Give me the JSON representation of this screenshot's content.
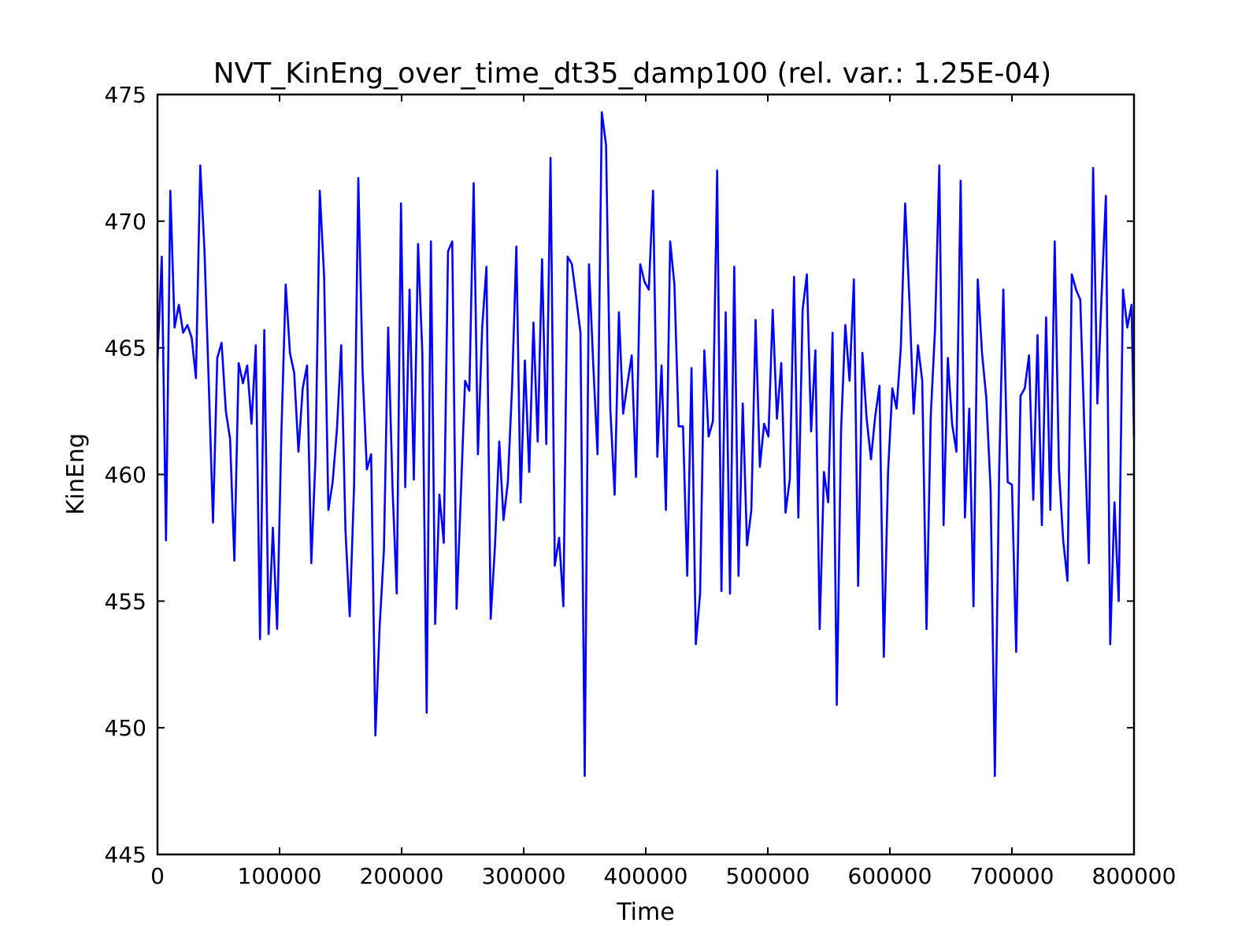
{
  "colors": {
    "series": "#0000ff",
    "frame": "#000000",
    "background": "#ffffff"
  },
  "chart_data": {
    "type": "line",
    "title": "NVT_KinEng_over_time_dt35_damp100 (rel. var.: 1.25E-04)",
    "xlabel": "Time",
    "ylabel": "KinEng",
    "xlim": [
      0,
      800000
    ],
    "ylim": [
      445,
      475
    ],
    "grid": false,
    "legend": "none",
    "xticks": [
      0,
      100000,
      200000,
      300000,
      400000,
      500000,
      600000,
      700000,
      800000
    ],
    "xtick_labels": [
      "0",
      "100000",
      "200000",
      "300000",
      "400000",
      "500000",
      "600000",
      "700000",
      "800000"
    ],
    "yticks": [
      445,
      450,
      455,
      460,
      465,
      470,
      475
    ],
    "ytick_labels": [
      "445",
      "450",
      "455",
      "460",
      "465",
      "470",
      "475"
    ],
    "series": [
      {
        "color": "#0000ff",
        "x": [
          0,
          3500,
          7000,
          10500,
          14000,
          17500,
          21000,
          24500,
          28000,
          31500,
          35000,
          38500,
          42000,
          45500,
          49000,
          52500,
          56000,
          59500,
          63000,
          66500,
          70000,
          73500,
          77000,
          80500,
          84000,
          87500,
          91000,
          94500,
          98000,
          101500,
          105000,
          108500,
          112000,
          115500,
          119000,
          122500,
          126000,
          129500,
          133000,
          136500,
          140000,
          143500,
          147000,
          150500,
          154000,
          157500,
          161000,
          164500,
          168000,
          171500,
          175000,
          178500,
          182000,
          185500,
          189000,
          192500,
          196000,
          199500,
          203000,
          206500,
          210000,
          213500,
          217000,
          220500,
          224000,
          227500,
          231000,
          234500,
          238000,
          241500,
          245000,
          248500,
          252000,
          255500,
          259000,
          262500,
          266000,
          269500,
          273000,
          276500,
          280000,
          283500,
          287000,
          290500,
          294000,
          297500,
          301000,
          304500,
          308000,
          311500,
          315000,
          318500,
          322000,
          325500,
          329000,
          332500,
          336000,
          339500,
          343000,
          346500,
          350000,
          353500,
          357000,
          360500,
          364000,
          367500,
          371000,
          374500,
          378000,
          381500,
          385000,
          388500,
          392000,
          395500,
          399000,
          402500,
          406000,
          409500,
          413000,
          416500,
          420000,
          423500,
          427000,
          430500,
          434000,
          437500,
          441000,
          444500,
          448000,
          451500,
          455000,
          458500,
          462000,
          465500,
          469000,
          472500,
          476000,
          479500,
          483000,
          486500,
          490000,
          493500,
          497000,
          500500,
          504000,
          507500,
          511000,
          514500,
          518000,
          521500,
          525000,
          528500,
          532000,
          535500,
          539000,
          542500,
          546000,
          549500,
          553000,
          556500,
          560000,
          563500,
          567000,
          570500,
          574000,
          577500,
          581000,
          584500,
          588000,
          591500,
          595000,
          598500,
          602000,
          605500,
          609000,
          612500,
          616000,
          619500,
          623000,
          626500,
          630000,
          633500,
          637000,
          640500,
          644000,
          647500,
          651000,
          654500,
          658000,
          661500,
          665000,
          668500,
          672000,
          675500,
          679000,
          682500,
          686000,
          689500,
          693000,
          696500,
          700000,
          703500,
          707000,
          710500,
          714000,
          717500,
          721000,
          724500,
          728000,
          731500,
          735000,
          738500,
          742000,
          745500,
          749000,
          752500,
          756000,
          759500,
          763000,
          766500,
          770000,
          773500,
          777000,
          780500,
          784000,
          787500,
          791000,
          794500,
          798000,
          800000
        ],
        "y": [
          464.5,
          468.6,
          457.4,
          471.2,
          465.8,
          466.7,
          465.6,
          465.9,
          465.4,
          463.8,
          472.2,
          468.8,
          463.6,
          458.1,
          464.6,
          465.2,
          462.5,
          461.4,
          456.6,
          464.4,
          463.6,
          464.3,
          462.0,
          465.1,
          453.5,
          465.7,
          453.7,
          457.9,
          453.9,
          461.6,
          467.5,
          464.8,
          464.0,
          460.9,
          463.4,
          464.3,
          456.5,
          460.7,
          471.2,
          467.8,
          458.6,
          459.7,
          461.8,
          465.1,
          457.8,
          454.4,
          459.5,
          471.7,
          464.1,
          460.2,
          460.8,
          449.7,
          454.0,
          457.0,
          465.8,
          459.5,
          455.3,
          470.7,
          459.5,
          467.3,
          459.8,
          469.1,
          464.8,
          450.6,
          469.2,
          454.1,
          459.2,
          457.3,
          468.8,
          469.2,
          454.7,
          459.2,
          463.7,
          463.3,
          471.5,
          460.8,
          465.8,
          468.2,
          454.3,
          457.2,
          461.3,
          458.2,
          459.7,
          463.5,
          469.0,
          458.9,
          464.5,
          460.1,
          466.0,
          461.3,
          468.5,
          461.2,
          472.5,
          456.4,
          457.5,
          454.8,
          468.6,
          468.3,
          467.0,
          465.6,
          448.1,
          468.3,
          464.3,
          460.8,
          474.3,
          473.0,
          462.6,
          459.2,
          466.4,
          462.4,
          463.6,
          464.7,
          459.9,
          468.3,
          467.6,
          467.3,
          471.2,
          460.7,
          464.3,
          458.6,
          469.2,
          467.5,
          461.9,
          461.9,
          456.0,
          464.2,
          453.3,
          455.3,
          464.9,
          461.5,
          462.1,
          472.0,
          455.4,
          466.4,
          455.3,
          468.2,
          456.0,
          462.8,
          457.2,
          458.6,
          466.1,
          460.3,
          462.0,
          461.5,
          466.5,
          462.2,
          464.4,
          458.5,
          459.8,
          467.8,
          458.3,
          466.5,
          467.9,
          461.7,
          464.9,
          453.9,
          460.1,
          458.9,
          465.6,
          450.9,
          461.7,
          465.9,
          463.7,
          467.7,
          455.6,
          464.8,
          462.2,
          460.6,
          462.3,
          463.5,
          452.8,
          460.1,
          463.4,
          462.6,
          465.0,
          470.7,
          466.9,
          462.4,
          465.1,
          463.7,
          453.9,
          462.3,
          465.7,
          472.2,
          458.0,
          464.6,
          462.0,
          460.9,
          471.6,
          458.3,
          462.6,
          454.8,
          467.7,
          464.8,
          463.0,
          459.4,
          448.1,
          460.0,
          467.3,
          459.7,
          459.6,
          453.0,
          463.1,
          463.4,
          464.7,
          459.0,
          465.5,
          458.0,
          466.2,
          458.6,
          469.2,
          460.2,
          457.4,
          455.8,
          467.9,
          467.3,
          466.9,
          461.6,
          456.5,
          472.1,
          462.8,
          467.1,
          471.0,
          453.3,
          458.9,
          455.0,
          467.3,
          465.8,
          466.7,
          461.5
        ]
      }
    ]
  }
}
